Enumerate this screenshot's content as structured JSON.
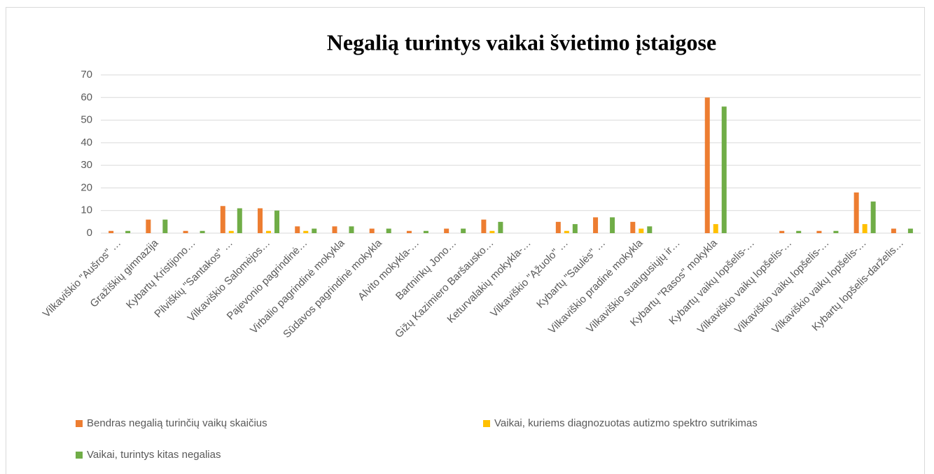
{
  "chart_data": {
    "type": "bar",
    "title": "Negalią turintys vaikai švietimo įstaigose",
    "categories": [
      "Vilkaviškio \"Aušros\" …",
      "Gražiškių gimnazija",
      "Kybartų Kristijono…",
      "Pilviškių \"Santakos\" …",
      "Vilkaviškio Salomėjos…",
      "Pajevonio pagrindinė…",
      "Virbalio pagrindinė mokykla",
      "Sūdavos pagrindinė mokykla",
      "Alvito mokykla-…",
      "Bartninkų Jono…",
      "Gižų Kazimiero Baršausko…",
      "Keturvalakių mokykla-…",
      "Vilkaviškio \"Ąžuolo\" …",
      "Kybartų \"Saulės\" …",
      "Vilkaviškio pradinė mokykla",
      "Vilkaviškio suaugusiųjų ir…",
      "Kybartų \"Rasos\" mokykla",
      "Kybartų vaikų lopšelis-…",
      "Vilkaviškio vaikų lopšelis-…",
      "Vilkaviškio vaikų lopšelis-…",
      "Vilkaviškio vaikų lopšelis-…",
      "Kybartų lopšelis-darželis…"
    ],
    "series": [
      {
        "name": "Bendras negalią turinčių vaikų skaičius",
        "color": "#ed7d31",
        "values": [
          1,
          6,
          1,
          12,
          11,
          3,
          3,
          2,
          1,
          2,
          6,
          0,
          5,
          7,
          5,
          0,
          60,
          0,
          1,
          1,
          18,
          2
        ]
      },
      {
        "name": "Vaikai, kuriems diagnozuotas autizmo spektro sutrikimas",
        "color": "#ffc000",
        "values": [
          0,
          0,
          0,
          1,
          1,
          1,
          0,
          0,
          0,
          0,
          1,
          0,
          1,
          0,
          2,
          0,
          4,
          0,
          0,
          0,
          4,
          0
        ]
      },
      {
        "name": "Vaikai, turintys kitas negalias",
        "color": "#70ad47",
        "values": [
          1,
          6,
          1,
          11,
          10,
          2,
          3,
          2,
          1,
          2,
          5,
          0,
          4,
          7,
          3,
          0,
          56,
          0,
          1,
          1,
          14,
          2
        ]
      }
    ],
    "ylim": [
      0,
      70
    ],
    "yticks": [
      0,
      10,
      20,
      30,
      40,
      50,
      60,
      70
    ],
    "grid": true
  }
}
